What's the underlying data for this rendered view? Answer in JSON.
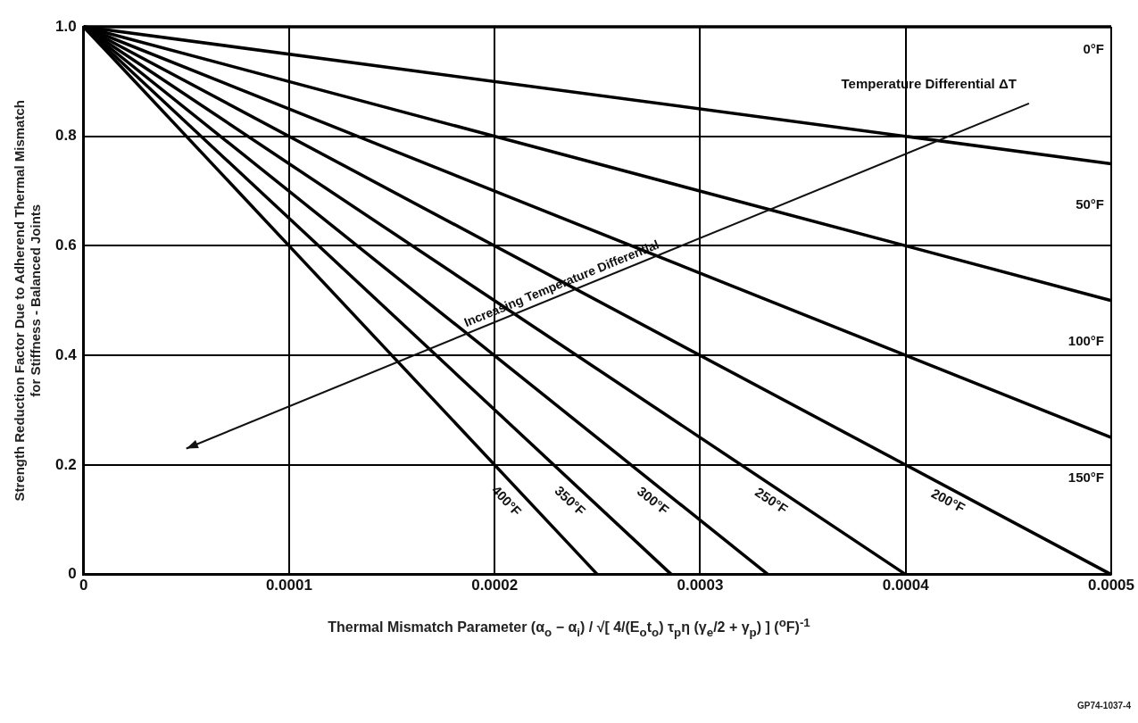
{
  "chart_data": {
    "type": "line",
    "ylabel": "Strength Reduction Factor Due to Adherend Thermal Mismatch\nfor Stiffness - Balanced Joints",
    "xlabel": "Thermal Mismatch Parameter     (α$_{o}$ − α$_{i}$) / √[ 4/(E$_{o}$t$_{o}$) τ$_{p}$η (γ$_{e}$/2 + γ$_{p}$) ]     ($^{o}$F)$^{-1}$",
    "x": [
      0,
      0.0005
    ],
    "series": [
      {
        "name": "0°F",
        "color": "#000000",
        "values": [
          1,
          1
        ]
      },
      {
        "name": "50°F",
        "color": "#000000",
        "values": [
          1,
          0.75
        ]
      },
      {
        "name": "100°F",
        "color": "#000000",
        "values": [
          1,
          0.5
        ]
      },
      {
        "name": "150°F",
        "color": "#000000",
        "values": [
          1,
          0.25
        ]
      },
      {
        "name": "200°F",
        "color": "#000000",
        "values": [
          1,
          0
        ]
      },
      {
        "name": "250°F",
        "color": "#000000",
        "x": [
          0,
          0.0004
        ],
        "values": [
          1,
          0
        ]
      },
      {
        "name": "300°F",
        "color": "#000000",
        "x": [
          0,
          0.000333
        ],
        "values": [
          1,
          0
        ]
      },
      {
        "name": "350°F",
        "color": "#000000",
        "x": [
          0,
          0.000286
        ],
        "values": [
          1,
          0
        ]
      },
      {
        "name": "400°F",
        "color": "#000000",
        "x": [
          0,
          0.00025
        ],
        "values": [
          1,
          0
        ]
      }
    ],
    "xlim": [
      0,
      0.0005
    ],
    "xticks": [
      0,
      0.0001,
      0.0002,
      0.0003,
      0.0004,
      0.0005
    ],
    "ylim": [
      0,
      1
    ],
    "yticks": [
      0,
      {
        "value": 0.2,
        "label": "0.2"
      },
      {
        "value": 0.4,
        "label": "0.4"
      },
      {
        "value": 0.6,
        "label": "0.6"
      },
      {
        "value": 0.8,
        "label": "0.8"
      },
      {
        "value": 1,
        "label": "1.0"
      }
    ],
    "grid": true,
    "legend": false,
    "marker": "none",
    "line_style": "solid",
    "annotations": [
      "Temperature Differential ΔT",
      "Increasing Temperature Differential",
      "GP74-1037-4"
    ]
  }
}
